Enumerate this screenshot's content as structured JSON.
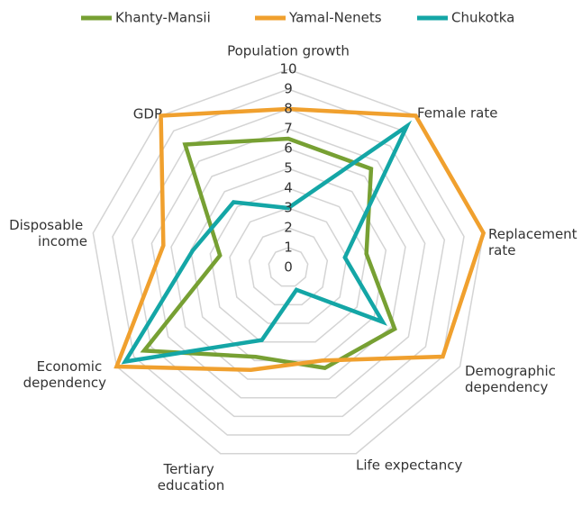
{
  "chart_data": {
    "type": "radar",
    "categories": [
      "Population growth",
      "Female rate",
      "Replacement rate",
      "Demographic dependency",
      "Life expectancy",
      "Tertiary education",
      "Economic dependency",
      "Disposable income",
      "GDP"
    ],
    "series": [
      {
        "name": "Khanty-Mansii",
        "color": "#77a033",
        "values": [
          6.5,
          6.5,
          4,
          6.2,
          5.4,
          4.8,
          8.4,
          3.5,
          8.1
        ]
      },
      {
        "name": "Yamal-Nenets",
        "color": "#f0a02e",
        "values": [
          8,
          10,
          10,
          9,
          5,
          5.5,
          10,
          6.4,
          10
        ]
      },
      {
        "name": "Chukotka",
        "color": "#14a6a6",
        "values": [
          3,
          9.3,
          2.9,
          5.5,
          1.2,
          3.9,
          9.5,
          4.9,
          4.3
        ]
      }
    ],
    "ylim": [
      0,
      10
    ],
    "yticks": [
      0,
      1,
      2,
      3,
      4,
      5,
      6,
      7,
      8,
      9,
      10
    ],
    "grid": true,
    "legend": "top"
  }
}
